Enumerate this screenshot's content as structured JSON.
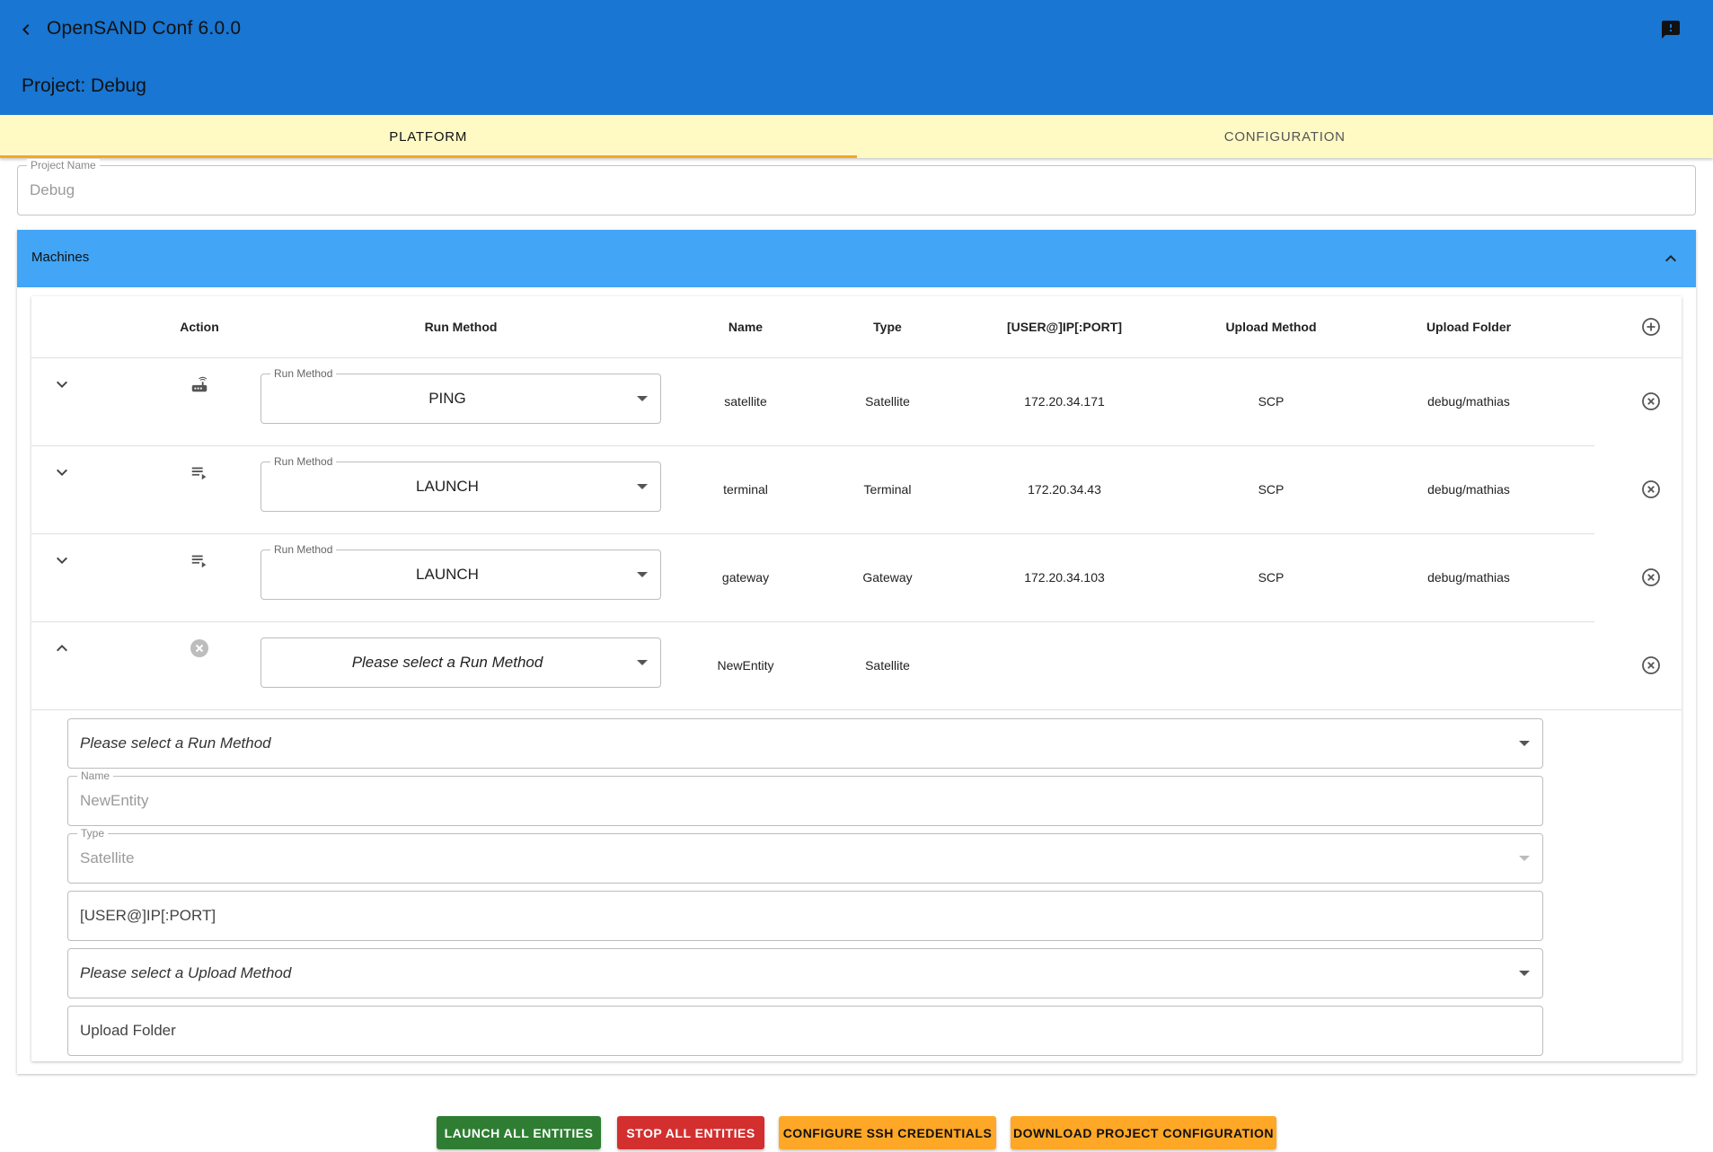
{
  "header": {
    "app_title": "OpenSAND Conf 6.0.0",
    "project_title": "Project: Debug"
  },
  "tabs": [
    {
      "label": "PLATFORM",
      "active": true
    },
    {
      "label": "CONFIGURATION",
      "active": false
    }
  ],
  "project_name": {
    "label": "Project Name",
    "value": "Debug"
  },
  "machines": {
    "title": "Machines",
    "columns": [
      "Action",
      "Run Method",
      "Name",
      "Type",
      "[USER@]IP[:PORT]",
      "Upload Method",
      "Upload Folder"
    ],
    "rows": [
      {
        "run_method_label": "Run Method",
        "run_method": "PING",
        "name": "satellite",
        "type": "Satellite",
        "address": "172.20.34.171",
        "upload_method": "SCP",
        "upload_folder": "debug/mathias",
        "action_icon": "router-icon"
      },
      {
        "run_method_label": "Run Method",
        "run_method": "LAUNCH",
        "name": "terminal",
        "type": "Terminal",
        "address": "172.20.34.43",
        "upload_method": "SCP",
        "upload_folder": "debug/mathias",
        "action_icon": "playlist-play-icon"
      },
      {
        "run_method_label": "Run Method",
        "run_method": "LAUNCH",
        "name": "gateway",
        "type": "Gateway",
        "address": "172.20.34.103",
        "upload_method": "SCP",
        "upload_folder": "debug/mathias",
        "action_icon": "playlist-play-icon"
      },
      {
        "run_method_label": "",
        "run_method": "Please select a Run Method",
        "name": "NewEntity",
        "type": "Satellite",
        "address": "",
        "upload_method": "",
        "upload_folder": "",
        "action_icon": "cancel-circle-icon"
      }
    ],
    "expanded": {
      "run_method_placeholder": "Please select a Run Method",
      "name_label": "Name",
      "name_value": "NewEntity",
      "type_label": "Type",
      "type_value": "Satellite",
      "address_placeholder": "[USER@]IP[:PORT]",
      "upload_method_placeholder": "Please select a Upload Method",
      "upload_folder_placeholder": "Upload Folder"
    }
  },
  "buttons": {
    "launch_all": "LAUNCH ALL ENTITIES",
    "stop_all": "STOP ALL ENTITIES",
    "configure_ssh": "CONFIGURE SSH CREDENTIALS",
    "download_config": "DOWNLOAD PROJECT CONFIGURATION"
  },
  "colors": {
    "appbar": "#1976d2",
    "tabs_bg": "#fff9c4",
    "tab_indicator": "#f5a623",
    "panel_header": "#42a5f5",
    "launch": "#2e7d32",
    "stop": "#d32f2f",
    "secondary_action": "#ffa726"
  }
}
